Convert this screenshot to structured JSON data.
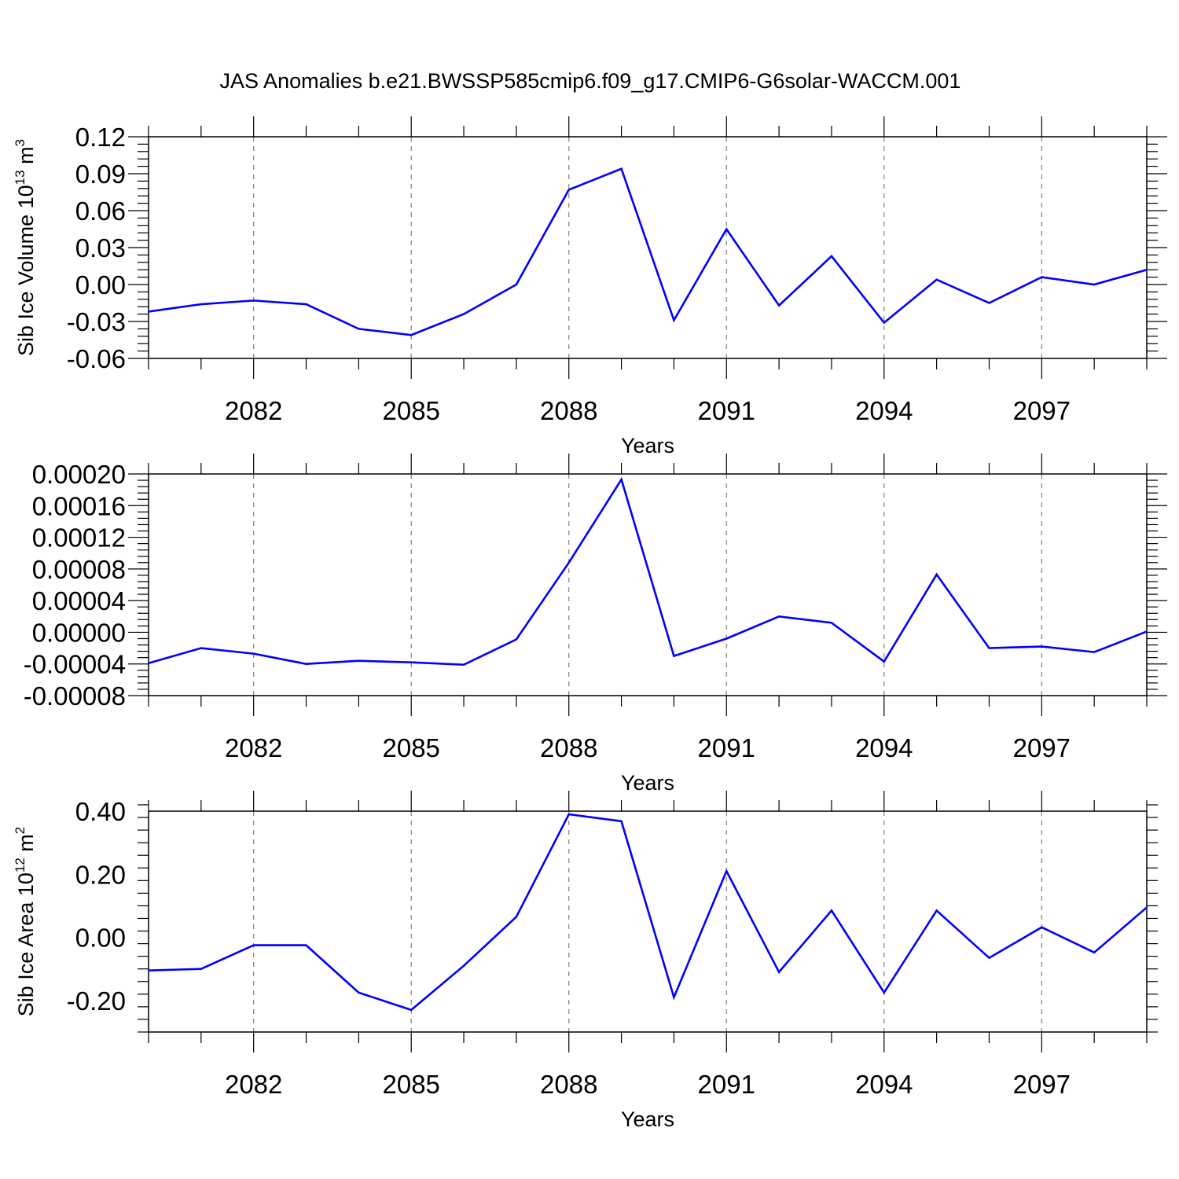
{
  "title": "JAS Anomalies b.e21.BWSSP585cmip6.f09_g17.CMIP6-G6solar-WACCM.001",
  "colors": {
    "line": "#0000ff",
    "axis": "#000000",
    "grid": "#808080"
  },
  "chart_data": [
    {
      "type": "line",
      "ylabel": {
        "text": "Sib Ice Volume 10",
        "sup1": "13",
        "mid": " m",
        "sup2": "3"
      },
      "xlabel": "Years",
      "xlim": [
        2080,
        2099
      ],
      "ylim": [
        -0.06,
        0.12
      ],
      "yticks": [
        -0.06,
        -0.03,
        0.0,
        0.03,
        0.06,
        0.09,
        0.12
      ],
      "ytick_labels": [
        "-0.06",
        "-0.03",
        "0.00",
        "0.03",
        "0.06",
        "0.09",
        "0.12"
      ],
      "xticks": [
        2082,
        2085,
        2088,
        2091,
        2094,
        2097
      ],
      "xtick_labels": [
        "2082",
        "2085",
        "2088",
        "2091",
        "2094",
        "2097"
      ],
      "grid": "vertical dashed at major x ticks",
      "x": [
        2080,
        2081,
        2082,
        2083,
        2084,
        2085,
        2086,
        2087,
        2088,
        2089,
        2090,
        2091,
        2092,
        2093,
        2094,
        2095,
        2096,
        2097,
        2098,
        2099
      ],
      "series": [
        {
          "values": [
            -0.022,
            -0.016,
            -0.013,
            -0.016,
            -0.036,
            -0.041,
            -0.024,
            0.0,
            0.077,
            0.094,
            -0.029,
            0.045,
            -0.017,
            0.023,
            -0.031,
            0.004,
            -0.015,
            0.006,
            0.0,
            0.012
          ]
        }
      ]
    },
    {
      "type": "line",
      "ylabel": {
        "text": "",
        "sup1": "",
        "mid": "",
        "sup2": ""
      },
      "xlabel": "Years",
      "xlim": [
        2080,
        2099
      ],
      "ylim": [
        -8e-05,
        0.0002
      ],
      "yticks": [
        -8e-05,
        -4e-05,
        0.0,
        4e-05,
        8e-05,
        0.00012,
        0.00016,
        0.0002
      ],
      "ytick_labels": [
        "-0.00008",
        "-0.00004",
        "0.00000",
        "0.00004",
        "0.00008",
        "0.00012",
        "0.00016",
        "0.00020"
      ],
      "xticks": [
        2082,
        2085,
        2088,
        2091,
        2094,
        2097
      ],
      "xtick_labels": [
        "2082",
        "2085",
        "2088",
        "2091",
        "2094",
        "2097"
      ],
      "grid": "vertical dashed at major x ticks",
      "x": [
        2080,
        2081,
        2082,
        2083,
        2084,
        2085,
        2086,
        2087,
        2088,
        2089,
        2090,
        2091,
        2092,
        2093,
        2094,
        2095,
        2096,
        2097,
        2098,
        2099
      ],
      "series": [
        {
          "values": [
            -3.9e-05,
            -2e-05,
            -2.7e-05,
            -4e-05,
            -3.6e-05,
            -3.8e-05,
            -4.1e-05,
            -9e-06,
            8.8e-05,
            0.000193,
            -3e-05,
            -8e-06,
            2e-05,
            1.2e-05,
            -3.7e-05,
            7.3e-05,
            -2e-05,
            -1.8e-05,
            -2.5e-05,
            1e-06
          ]
        }
      ]
    },
    {
      "type": "line",
      "ylabel": {
        "text": "Sib Ice Area 10",
        "sup1": "12",
        "mid": " m",
        "sup2": "2"
      },
      "xlabel": "Years",
      "xlim": [
        2080,
        2099
      ],
      "ylim": [
        -0.3,
        0.4
      ],
      "yticks": [
        -0.2,
        0.0,
        0.2,
        0.4
      ],
      "ytick_labels": [
        "-0.20",
        "0.00",
        "0.20",
        "0.40"
      ],
      "xticks": [
        2082,
        2085,
        2088,
        2091,
        2094,
        2097
      ],
      "xtick_labels": [
        "2082",
        "2085",
        "2088",
        "2091",
        "2094",
        "2097"
      ],
      "grid": "vertical dashed at major x ticks",
      "x": [
        2080,
        2081,
        2082,
        2083,
        2084,
        2085,
        2086,
        2087,
        2088,
        2089,
        2090,
        2091,
        2092,
        2093,
        2094,
        2095,
        2096,
        2097,
        2098,
        2099
      ],
      "series": [
        {
          "values": [
            -0.105,
            -0.1,
            -0.025,
            -0.025,
            -0.175,
            -0.23,
            -0.09,
            0.065,
            0.39,
            0.368,
            -0.19,
            0.21,
            -0.11,
            0.085,
            -0.175,
            0.085,
            -0.065,
            0.032,
            -0.048,
            0.095
          ]
        }
      ]
    }
  ]
}
